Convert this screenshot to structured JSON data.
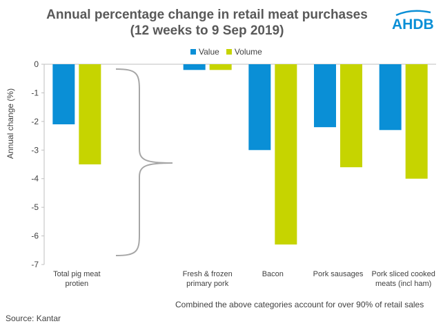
{
  "header": {
    "title_line1": "Annual percentage change in retail meat purchases",
    "title_line2": "(12 weeks to 9 Sep 2019)",
    "logo_text": "AHDB"
  },
  "footer": {
    "note": "Combined the above categories account for over 90% of retail sales",
    "source": "Source: Kantar"
  },
  "colors": {
    "value": "#0a8fd6",
    "volume": "#c6d400",
    "bracket": "#a6a6a6",
    "axis": "#bfbfbf",
    "logo": "#0a8fd6"
  },
  "chart_data": {
    "type": "bar",
    "title": "Annual percentage change in retail meat purchases (12 weeks to 9 Sep 2019)",
    "ylabel": "Annual change (%)",
    "xlabel": "",
    "ylim": [
      -7,
      0
    ],
    "yticks": [
      "0",
      "-1",
      "-2",
      "-3",
      "-4",
      "-5",
      "-6",
      "-7"
    ],
    "legend_position": "top-center",
    "grid": false,
    "categories": [
      [
        "Total pig meat",
        "protien"
      ],
      [],
      [
        "Fresh & frozen",
        "primary pork"
      ],
      [
        "Bacon"
      ],
      [
        "Pork sausages"
      ],
      [
        "Pork sliced cooked",
        "meats (incl ham)"
      ]
    ],
    "series": [
      {
        "name": "Value",
        "values": [
          -2.1,
          null,
          -0.2,
          -3.0,
          -2.2,
          -2.3
        ]
      },
      {
        "name": "Volume",
        "values": [
          -3.5,
          null,
          -0.2,
          -6.3,
          -3.6,
          -4.0
        ]
      }
    ]
  }
}
